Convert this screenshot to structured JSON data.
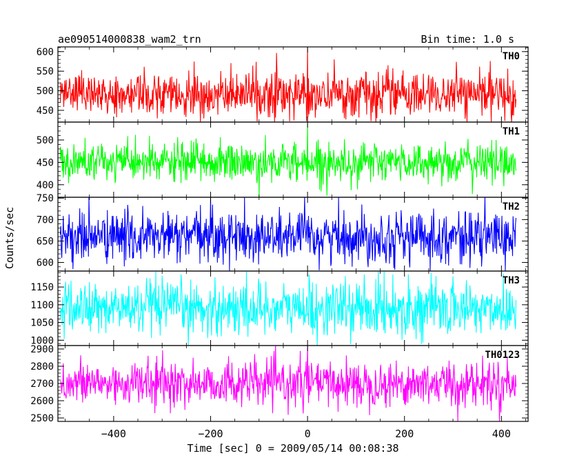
{
  "header": {
    "left_title": "ae090514000838_wam2_trn",
    "right_title": "Bin time: 1.0 s"
  },
  "axes": {
    "xlabel": "Time [sec] 0 = 2009/05/14 00:08:38",
    "ylabel": "Counts/sec"
  },
  "chart_data": {
    "type": "line",
    "x_range": [
      -510,
      430
    ],
    "xlim": [
      -515,
      455
    ],
    "x_ticks": [
      -400,
      -200,
      0,
      200,
      400
    ],
    "x_tick_labels": [
      "−400",
      "−200",
      "0",
      "200",
      "400"
    ],
    "bin_time_s": 1.0,
    "series": [
      {
        "name": "TH0",
        "color": "#ff0000",
        "ylim": [
          420,
          612
        ],
        "mean": 490,
        "sd": 28,
        "floor": 420,
        "ceil": 612,
        "ticks": [
          450,
          500,
          550,
          600
        ],
        "tick_labels": [
          "450",
          "500",
          "550",
          "600"
        ],
        "spikes": [
          {
            "x": 0,
            "y": 612
          }
        ]
      },
      {
        "name": "TH1",
        "color": "#00ff00",
        "ylim": [
          372,
          540
        ],
        "mean": 450,
        "sd": 22,
        "floor": 372,
        "ceil": 540,
        "ticks": [
          400,
          450,
          500
        ],
        "tick_labels": [
          "400",
          "450",
          "500"
        ],
        "spikes": [
          {
            "x": -100,
            "y": 372
          },
          {
            "x": 0,
            "y": 540
          }
        ]
      },
      {
        "name": "TH2",
        "color": "#0000ff",
        "ylim": [
          580,
          752
        ],
        "mean": 660,
        "sd": 30,
        "floor": 580,
        "ceil": 752,
        "ticks": [
          600,
          650,
          700,
          750
        ],
        "tick_labels": [
          "600",
          "650",
          "700",
          "750"
        ],
        "spikes": [
          {
            "x": -200,
            "y": 752
          },
          {
            "x": -130,
            "y": 752
          }
        ]
      },
      {
        "name": "TH3",
        "color": "#00ffff",
        "ylim": [
          985,
          1195
        ],
        "mean": 1090,
        "sd": 38,
        "floor": 985,
        "ceil": 1195,
        "ticks": [
          1000,
          1050,
          1100,
          1150
        ],
        "tick_labels": [
          "1000",
          "1050",
          "1100",
          "1150"
        ],
        "spikes": [
          {
            "x": 20,
            "y": 985
          }
        ]
      },
      {
        "name": "TH0123",
        "color": "#ff00ff",
        "ylim": [
          2480,
          2920
        ],
        "mean": 2700,
        "sd": 65,
        "floor": 2480,
        "ceil": 2920,
        "ticks": [
          2500,
          2600,
          2700,
          2800,
          2900
        ],
        "tick_labels": [
          "2500",
          "2600",
          "2700",
          "2800",
          "2900"
        ],
        "spikes": [
          {
            "x": 0,
            "y": 2920
          },
          {
            "x": 310,
            "y": 2480
          }
        ]
      }
    ]
  }
}
